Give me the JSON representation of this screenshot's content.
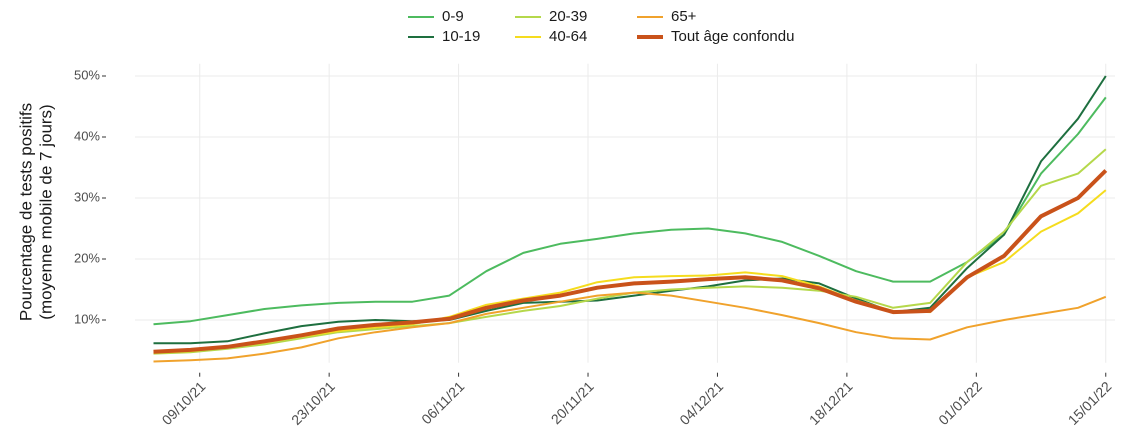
{
  "chart_data": {
    "type": "line",
    "ylabel": [
      "Pourcentage de tests positifs",
      "(moyenne mobile de 7 jours)"
    ],
    "x": [
      "2021-10-04",
      "2021-10-08",
      "2021-10-12",
      "2021-10-16",
      "2021-10-20",
      "2021-10-24",
      "2021-10-28",
      "2021-11-01",
      "2021-11-05",
      "2021-11-09",
      "2021-11-13",
      "2021-11-17",
      "2021-11-21",
      "2021-11-25",
      "2021-11-29",
      "2021-12-03",
      "2021-12-07",
      "2021-12-11",
      "2021-12-15",
      "2021-12-19",
      "2021-12-23",
      "2021-12-27",
      "2021-12-31",
      "2022-01-04",
      "2022-01-08",
      "2022-01-12",
      "2022-01-15"
    ],
    "series": [
      {
        "name": "0-9",
        "color": "#4dbb5f",
        "values": [
          9.3,
          9.8,
          10.8,
          11.8,
          12.4,
          12.8,
          13.0,
          13.0,
          14.0,
          18.0,
          21.0,
          22.5,
          23.3,
          24.2,
          24.8,
          25.0,
          24.2,
          22.8,
          20.5,
          18.0,
          16.3,
          16.3,
          19.5,
          24.0,
          34.0,
          40.5,
          46.5
        ]
      },
      {
        "name": "10-19",
        "color": "#1e6f3f",
        "values": [
          6.2,
          6.2,
          6.5,
          7.8,
          9.0,
          9.7,
          10.0,
          9.8,
          10.0,
          11.5,
          12.8,
          13.0,
          13.2,
          14.0,
          14.8,
          15.5,
          16.5,
          16.8,
          16.0,
          13.5,
          11.3,
          12.0,
          18.5,
          24.0,
          36.0,
          43.0,
          50.0
        ]
      },
      {
        "name": "20-39",
        "color": "#b5d84b",
        "values": [
          4.5,
          4.7,
          5.3,
          6.0,
          7.0,
          8.0,
          8.5,
          9.0,
          9.5,
          10.5,
          11.5,
          12.3,
          13.5,
          14.5,
          15.0,
          15.3,
          15.5,
          15.3,
          14.8,
          13.8,
          12.0,
          12.8,
          19.5,
          24.5,
          32.0,
          34.0,
          38.0
        ]
      },
      {
        "name": "40-64",
        "color": "#f5dc1e",
        "values": [
          4.6,
          4.9,
          5.5,
          6.3,
          7.3,
          8.2,
          8.8,
          9.3,
          10.5,
          12.5,
          13.5,
          14.5,
          16.2,
          17.0,
          17.2,
          17.3,
          17.8,
          17.2,
          15.5,
          13.2,
          11.5,
          11.3,
          17.0,
          19.5,
          24.5,
          27.5,
          31.3
        ]
      },
      {
        "name": "65+",
        "color": "#f0a22c",
        "values": [
          3.2,
          3.4,
          3.7,
          4.5,
          5.5,
          7.0,
          8.0,
          8.8,
          9.5,
          11.0,
          12.0,
          13.0,
          14.0,
          14.5,
          14.0,
          13.0,
          12.0,
          10.8,
          9.5,
          8.0,
          7.0,
          6.8,
          8.8,
          10.0,
          11.0,
          12.0,
          13.8
        ]
      },
      {
        "name": "Tout âge confondu",
        "color": "#c9521a",
        "width": 4,
        "values": [
          4.8,
          5.1,
          5.6,
          6.5,
          7.5,
          8.6,
          9.2,
          9.6,
          10.2,
          12.0,
          13.2,
          14.0,
          15.3,
          16.0,
          16.3,
          16.7,
          17.0,
          16.5,
          15.2,
          13.0,
          11.3,
          11.5,
          17.0,
          20.5,
          27.0,
          30.0,
          34.5
        ]
      }
    ],
    "xlim": [
      "2021-10-02",
      "2022-01-16"
    ],
    "xticks": [
      {
        "value": "2021-10-09",
        "label": "09/10/21"
      },
      {
        "value": "2021-10-23",
        "label": "23/10/21"
      },
      {
        "value": "2021-11-06",
        "label": "06/11/21"
      },
      {
        "value": "2021-11-20",
        "label": "20/11/21"
      },
      {
        "value": "2021-12-04",
        "label": "04/12/21"
      },
      {
        "value": "2021-12-18",
        "label": "18/12/21"
      },
      {
        "value": "2022-01-01",
        "label": "01/01/22"
      },
      {
        "value": "2022-01-15",
        "label": "15/01/22"
      }
    ],
    "ylim": [
      3,
      52
    ],
    "yticks": [
      {
        "value": 10,
        "label": "10%"
      },
      {
        "value": 20,
        "label": "20%"
      },
      {
        "value": 30,
        "label": "30%"
      },
      {
        "value": 40,
        "label": "40%"
      },
      {
        "value": 50,
        "label": "50%"
      }
    ],
    "grid": true,
    "legend": "top"
  }
}
